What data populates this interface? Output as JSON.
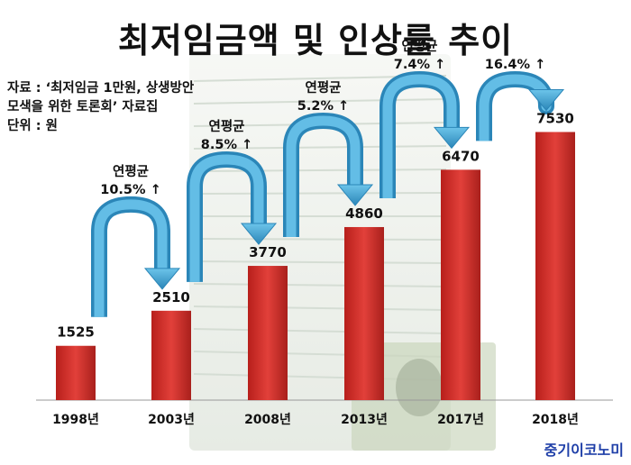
{
  "title": "최저임금액 및 인상률 추이",
  "source": {
    "line1": "자료 : ‘최저임금 1만원, 상생방안",
    "line2": "모색을 위한 토론회’ 자료집",
    "line3": "단위 : 원"
  },
  "brand": "중기이코노미",
  "colors": {
    "bar": "#d42a24",
    "arrow": "#3a9ccc",
    "text": "#111111",
    "brand": "#1f3fa8"
  },
  "chart_data": {
    "type": "bar",
    "title": "최저임금액 및 인상률 추이",
    "categories": [
      "1998년",
      "2003년",
      "2008년",
      "2013년",
      "2017년",
      "2018년"
    ],
    "values": [
      1525,
      2510,
      3770,
      4860,
      6470,
      7530
    ],
    "ylim": [
      0,
      8200
    ],
    "annotations": [
      {
        "from": 0,
        "to": 1,
        "lines": [
          "연평균",
          "10.5% ↑"
        ]
      },
      {
        "from": 1,
        "to": 2,
        "lines": [
          "연평균",
          "8.5% ↑"
        ]
      },
      {
        "from": 2,
        "to": 3,
        "lines": [
          "연평균",
          "5.2% ↑"
        ]
      },
      {
        "from": 3,
        "to": 4,
        "lines": [
          "연평균",
          "7.4% ↑"
        ]
      },
      {
        "from": 4,
        "to": 5,
        "lines": [
          "16.4% ↑"
        ]
      }
    ]
  }
}
